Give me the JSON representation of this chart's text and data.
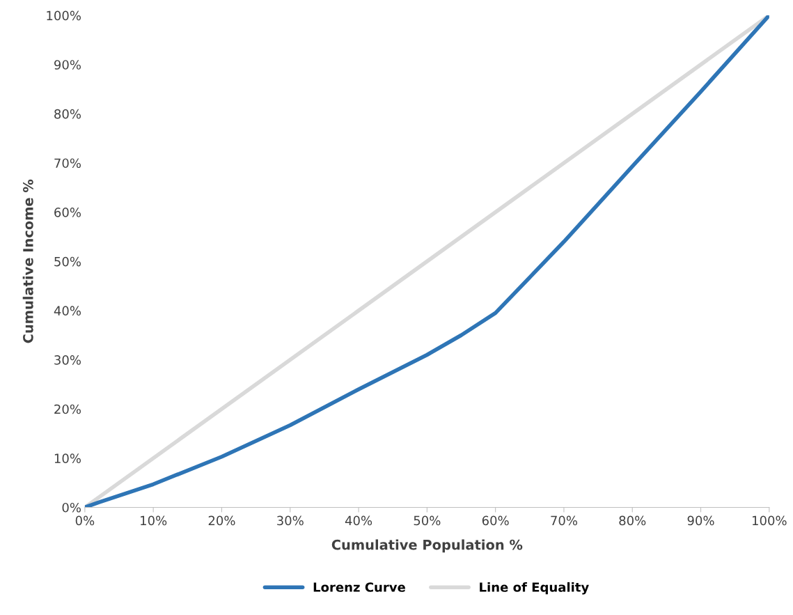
{
  "chart_data": {
    "type": "line",
    "xlabel": "Cumulative Population %",
    "ylabel": "Cumulative Income %",
    "xlim": [
      0,
      100
    ],
    "ylim": [
      0,
      100
    ],
    "xticks": [
      {
        "value": 0,
        "label": "0%"
      },
      {
        "value": 10,
        "label": "10%"
      },
      {
        "value": 20,
        "label": "20%"
      },
      {
        "value": 30,
        "label": "30%"
      },
      {
        "value": 40,
        "label": "40%"
      },
      {
        "value": 50,
        "label": "50%"
      },
      {
        "value": 60,
        "label": "60%"
      },
      {
        "value": 70,
        "label": "70%"
      },
      {
        "value": 80,
        "label": "80%"
      },
      {
        "value": 90,
        "label": "90%"
      },
      {
        "value": 100,
        "label": "100%"
      }
    ],
    "yticks": [
      {
        "value": 0,
        "label": "0%"
      },
      {
        "value": 10,
        "label": "10%"
      },
      {
        "value": 20,
        "label": "20%"
      },
      {
        "value": 30,
        "label": "30%"
      },
      {
        "value": 40,
        "label": "40%"
      },
      {
        "value": 50,
        "label": "50%"
      },
      {
        "value": 60,
        "label": "60%"
      },
      {
        "value": 70,
        "label": "70%"
      },
      {
        "value": 80,
        "label": "80%"
      },
      {
        "value": 90,
        "label": "90%"
      },
      {
        "value": 100,
        "label": "100%"
      }
    ],
    "grid": false,
    "legend": "bottom",
    "series": [
      {
        "name": "Lorenz Curve",
        "color": "#2e75b6",
        "x": [
          0,
          2,
          10,
          20,
          30,
          40,
          50,
          55,
          60,
          70,
          80,
          90,
          100
        ],
        "values": [
          0,
          1,
          4.7,
          10.3,
          16.7,
          24,
          31,
          35,
          39.5,
          54,
          69.3,
          84.5,
          100
        ]
      },
      {
        "name": "Line of Equality",
        "color": "#d9d9d9",
        "x": [
          0,
          100
        ],
        "values": [
          0,
          100
        ]
      }
    ]
  }
}
